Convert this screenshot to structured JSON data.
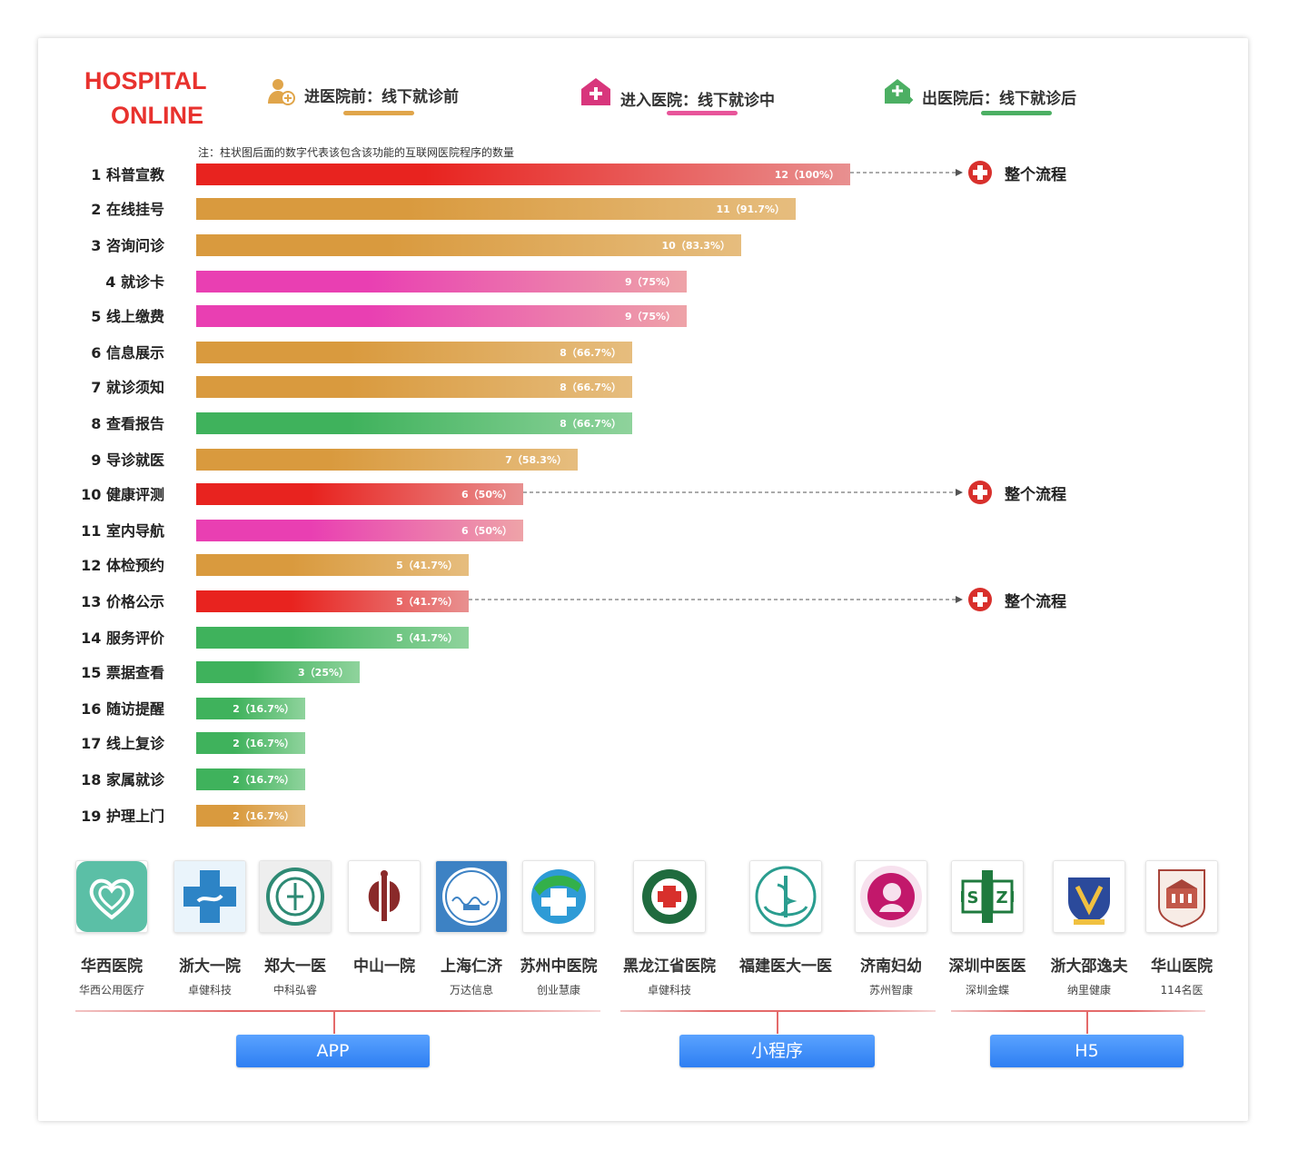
{
  "brand": {
    "line1": "HOSPITAL",
    "line2": "ONLINE"
  },
  "legend": [
    {
      "icon": "user-plus-icon",
      "label": "进医院前：线下就诊前",
      "color": "#e0a54a"
    },
    {
      "icon": "hospital-icon",
      "label": "进入医院：线下就诊中",
      "color": "#e8559a"
    },
    {
      "icon": "house-arrow-icon",
      "label": "出医院后：线下就诊后",
      "color": "#4caf63"
    }
  ],
  "note": "注：柱状图后面的数字代表该包含该功能的互联网医院程序的数量",
  "chart_data": {
    "type": "bar",
    "orientation": "horizontal",
    "total": 12,
    "categories": [
      "1 科普宣教",
      "2 在线挂号",
      "3 咨询问诊",
      "4 就诊卡",
      "5 线上缴费",
      "6 信息展示",
      "7 就诊须知",
      "8 查看报告",
      "9 导诊就医",
      "10 健康评测",
      "11 室内导航",
      "12 体检预约",
      "13 价格公示",
      "14 服务评价",
      "15 票据查看",
      "16 随访提醒",
      "17 线上复诊",
      "18 家属就诊",
      "19 护理上门"
    ],
    "values": [
      12,
      11,
      10,
      9,
      9,
      8,
      8,
      8,
      7,
      6,
      6,
      5,
      5,
      5,
      3,
      2,
      2,
      2,
      2
    ],
    "value_labels": [
      "12（100%）",
      "11（91.7%）",
      "10（83.3%）",
      "9（75%）",
      "9（75%）",
      "8（66.7%）",
      "8（66.7%）",
      "8（66.7%）",
      "7（58.3%）",
      "6（50%）",
      "6（50%）",
      "5（41.7%）",
      "5（41.7%）",
      "5（41.7%）",
      "3（25%）",
      "2（16.7%）",
      "2（16.7%）",
      "2（16.7%）",
      "2（16.7%）"
    ],
    "stage": [
      "whole",
      "before",
      "before",
      "during",
      "during",
      "before",
      "before",
      "after",
      "before",
      "whole",
      "during",
      "before",
      "whole",
      "after",
      "after",
      "after",
      "after",
      "after",
      "before"
    ],
    "annotation_label": "整个流程",
    "colors": {
      "whole": [
        "#e8231f",
        "#e89090"
      ],
      "before": [
        "#d99a3e",
        "#e6bd7e"
      ],
      "during": [
        "#e93fb2",
        "#eea3a8"
      ],
      "after": [
        "#3fb25c",
        "#8fd39c"
      ]
    }
  },
  "hospitals": [
    {
      "name": "华西医院",
      "vendor": "华西公用医疗",
      "logo": "heart-logo-icon"
    },
    {
      "name": "浙大一院",
      "vendor": "卓健科技",
      "logo": "blue-cross-logo-icon"
    },
    {
      "name": "郑大一医",
      "vendor": "中科弘睿",
      "logo": "green-seal-logo-icon"
    },
    {
      "name": "中山一院",
      "vendor": "",
      "logo": "zhong-logo-icon"
    },
    {
      "name": "上海仁济",
      "vendor": "万达信息",
      "logo": "renji-logo-icon"
    },
    {
      "name": "苏州中医院",
      "vendor": "创业慧康",
      "logo": "suzhou-logo-icon"
    },
    {
      "name": "黑龙江省医院",
      "vendor": "卓健科技",
      "logo": "heilongjiang-logo-icon"
    },
    {
      "name": "福建医大一医",
      "vendor": "",
      "logo": "fujian-logo-icon"
    },
    {
      "name": "济南妇幼",
      "vendor": "苏州智康",
      "logo": "jinan-logo-icon"
    },
    {
      "name": "深圳中医医",
      "vendor": "深圳金蝶",
      "logo": "sz-logo-icon"
    },
    {
      "name": "浙大邵逸夫",
      "vendor": "纳里健康",
      "logo": "shaoyifu-logo-icon"
    },
    {
      "name": "华山医院",
      "vendor": "114名医",
      "logo": "huashan-logo-icon"
    }
  ],
  "categories": [
    {
      "label": "APP"
    },
    {
      "label": "小程序"
    },
    {
      "label": "H5"
    }
  ]
}
